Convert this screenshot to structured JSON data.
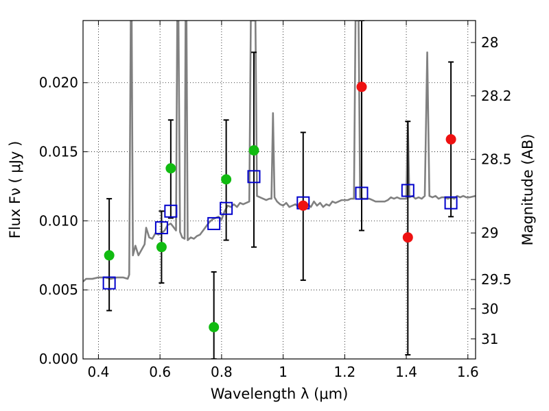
{
  "chart_data": {
    "type": "scatter",
    "xlabel": "Wavelength  λ (μm)",
    "ylabel": "Flux  Fν  ( μJy )",
    "y2label": "Magnitude (AB)",
    "xlim": [
      0.35,
      1.625
    ],
    "ylim": [
      0.0,
      0.0245
    ],
    "grid": true,
    "x_ticks": [
      0.4,
      0.6,
      0.8,
      1.0,
      1.2,
      1.4,
      1.6
    ],
    "x_tick_labels": [
      "0.4",
      "0.6",
      "0.8",
      "1",
      "1.2",
      "1.4",
      "1.6"
    ],
    "y_ticks": [
      0.0,
      0.005,
      0.01,
      0.015,
      0.02
    ],
    "y_tick_labels": [
      "0.000",
      "0.005",
      "0.010",
      "0.015",
      "0.020"
    ],
    "y2_ticks": [
      {
        "label": "28",
        "flux": 0.02291
      },
      {
        "label": "28.2",
        "flux": 0.01905
      },
      {
        "label": "28.5",
        "flux": 0.01445
      },
      {
        "label": "29",
        "flux": 0.00912
      },
      {
        "label": "29.5",
        "flux": 0.00575
      },
      {
        "label": "30",
        "flux": 0.00363
      },
      {
        "label": "31",
        "flux": 0.00145
      }
    ],
    "colors": {
      "spectrum": "#808080",
      "model_squares": "#0000cc",
      "detections": "#11bb11",
      "nondetections": "#ee1111",
      "errorbars": "#000000",
      "grid": "#000000"
    },
    "series": [
      {
        "marker": "line",
        "points": [
          [
            0.35,
            0.0056
          ],
          [
            0.36,
            0.0058
          ],
          [
            0.38,
            0.0058
          ],
          [
            0.4,
            0.0059
          ],
          [
            0.42,
            0.0059
          ],
          [
            0.44,
            0.0058
          ],
          [
            0.46,
            0.0059
          ],
          [
            0.48,
            0.0059
          ],
          [
            0.495,
            0.0058
          ],
          [
            0.5,
            0.0061
          ],
          [
            0.505,
            0.0245
          ],
          [
            0.508,
            0.0245
          ],
          [
            0.512,
            0.0075
          ],
          [
            0.52,
            0.0082
          ],
          [
            0.53,
            0.0075
          ],
          [
            0.54,
            0.0079
          ],
          [
            0.55,
            0.0083
          ],
          [
            0.555,
            0.0095
          ],
          [
            0.565,
            0.0088
          ],
          [
            0.575,
            0.0087
          ],
          [
            0.585,
            0.0091
          ],
          [
            0.595,
            0.009
          ],
          [
            0.605,
            0.0091
          ],
          [
            0.615,
            0.0093
          ],
          [
            0.625,
            0.0097
          ],
          [
            0.635,
            0.0098
          ],
          [
            0.642,
            0.0096
          ],
          [
            0.652,
            0.0093
          ],
          [
            0.656,
            0.0245
          ],
          [
            0.66,
            0.0245
          ],
          [
            0.665,
            0.0092
          ],
          [
            0.672,
            0.0088
          ],
          [
            0.68,
            0.0087
          ],
          [
            0.683,
            0.0245
          ],
          [
            0.686,
            0.0245
          ],
          [
            0.69,
            0.0086
          ],
          [
            0.7,
            0.0088
          ],
          [
            0.71,
            0.0087
          ],
          [
            0.72,
            0.0089
          ],
          [
            0.73,
            0.009
          ],
          [
            0.74,
            0.0093
          ],
          [
            0.75,
            0.0096
          ],
          [
            0.76,
            0.0099
          ],
          [
            0.77,
            0.0101
          ],
          [
            0.78,
            0.0102
          ],
          [
            0.79,
            0.0103
          ],
          [
            0.8,
            0.0101
          ],
          [
            0.81,
            0.0107
          ],
          [
            0.82,
            0.0111
          ],
          [
            0.83,
            0.011
          ],
          [
            0.84,
            0.0112
          ],
          [
            0.85,
            0.011
          ],
          [
            0.86,
            0.0113
          ],
          [
            0.87,
            0.0112
          ],
          [
            0.88,
            0.0113
          ],
          [
            0.89,
            0.0114
          ],
          [
            0.895,
            0.0245
          ],
          [
            0.9,
            0.0245
          ],
          [
            0.905,
            0.0245
          ],
          [
            0.91,
            0.0245
          ],
          [
            0.915,
            0.0118
          ],
          [
            0.925,
            0.0117
          ],
          [
            0.935,
            0.0116
          ],
          [
            0.945,
            0.0115
          ],
          [
            0.955,
            0.0116
          ],
          [
            0.962,
            0.0116
          ],
          [
            0.967,
            0.0178
          ],
          [
            0.972,
            0.0117
          ],
          [
            0.98,
            0.0114
          ],
          [
            0.99,
            0.0112
          ],
          [
            1.0,
            0.0111
          ],
          [
            1.01,
            0.0113
          ],
          [
            1.02,
            0.011
          ],
          [
            1.03,
            0.0111
          ],
          [
            1.04,
            0.0112
          ],
          [
            1.05,
            0.011
          ],
          [
            1.06,
            0.0113
          ],
          [
            1.07,
            0.0111
          ],
          [
            1.08,
            0.0112
          ],
          [
            1.09,
            0.011
          ],
          [
            1.1,
            0.0114
          ],
          [
            1.11,
            0.0111
          ],
          [
            1.12,
            0.0113
          ],
          [
            1.13,
            0.011
          ],
          [
            1.14,
            0.0112
          ],
          [
            1.15,
            0.0111
          ],
          [
            1.16,
            0.0114
          ],
          [
            1.17,
            0.0113
          ],
          [
            1.18,
            0.0114
          ],
          [
            1.19,
            0.0115
          ],
          [
            1.2,
            0.0115
          ],
          [
            1.21,
            0.0115
          ],
          [
            1.22,
            0.0116
          ],
          [
            1.23,
            0.0116
          ],
          [
            1.235,
            0.0245
          ],
          [
            1.245,
            0.0245
          ],
          [
            1.25,
            0.0117
          ],
          [
            1.26,
            0.0116
          ],
          [
            1.27,
            0.0116
          ],
          [
            1.28,
            0.0116
          ],
          [
            1.29,
            0.0115
          ],
          [
            1.3,
            0.0114
          ],
          [
            1.31,
            0.0114
          ],
          [
            1.32,
            0.0114
          ],
          [
            1.33,
            0.0114
          ],
          [
            1.34,
            0.0115
          ],
          [
            1.35,
            0.0117
          ],
          [
            1.36,
            0.0116
          ],
          [
            1.37,
            0.0117
          ],
          [
            1.38,
            0.0116
          ],
          [
            1.39,
            0.0116
          ],
          [
            1.4,
            0.0116
          ],
          [
            1.405,
            0.0172
          ],
          [
            1.41,
            0.0117
          ],
          [
            1.42,
            0.0118
          ],
          [
            1.43,
            0.0116
          ],
          [
            1.44,
            0.0117
          ],
          [
            1.45,
            0.0116
          ],
          [
            1.46,
            0.0118
          ],
          [
            1.468,
            0.0222
          ],
          [
            1.475,
            0.0118
          ],
          [
            1.485,
            0.0117
          ],
          [
            1.495,
            0.0118
          ],
          [
            1.505,
            0.0116
          ],
          [
            1.515,
            0.0117
          ],
          [
            1.525,
            0.0117
          ],
          [
            1.535,
            0.0116
          ],
          [
            1.545,
            0.0117
          ],
          [
            1.555,
            0.0116
          ],
          [
            1.565,
            0.0118
          ],
          [
            1.575,
            0.0117
          ],
          [
            1.585,
            0.0118
          ],
          [
            1.595,
            0.0117
          ],
          [
            1.605,
            0.0117
          ],
          [
            1.625,
            0.0118
          ]
        ]
      },
      {
        "marker": "square",
        "points": [
          [
            0.435,
            0.0055
          ],
          [
            0.605,
            0.0095
          ],
          [
            0.635,
            0.0107
          ],
          [
            0.775,
            0.0098
          ],
          [
            0.815,
            0.0109
          ],
          [
            0.905,
            0.0132
          ],
          [
            1.065,
            0.0113
          ],
          [
            1.255,
            0.012
          ],
          [
            1.405,
            0.0122
          ],
          [
            1.545,
            0.0113
          ]
        ]
      },
      {
        "marker": "circle",
        "points": [
          {
            "x": 0.435,
            "y": 0.0075,
            "yerr": [
              0.0035,
              0.0116
            ]
          },
          {
            "x": 0.605,
            "y": 0.0081,
            "yerr": [
              0.0055,
              0.0107
            ]
          },
          {
            "x": 0.635,
            "y": 0.0138,
            "yerr": [
              0.0102,
              0.0173
            ]
          },
          {
            "x": 0.775,
            "y": 0.0023,
            "yerr": [
              0.0,
              0.0063
            ]
          },
          {
            "x": 0.815,
            "y": 0.013,
            "yerr": [
              0.0086,
              0.0173
            ]
          },
          {
            "x": 0.905,
            "y": 0.0151,
            "yerr": [
              0.0081,
              0.0222
            ]
          }
        ]
      },
      {
        "marker": "circle",
        "points": [
          {
            "x": 1.065,
            "y": 0.0111,
            "yerr": [
              0.0057,
              0.0164
            ]
          },
          {
            "x": 1.255,
            "y": 0.0197,
            "yerr": [
              0.0093,
              0.0245
            ]
          },
          {
            "x": 1.405,
            "y": 0.0088,
            "yerr": [
              0.0003,
              0.0172
            ]
          },
          {
            "x": 1.545,
            "y": 0.0159,
            "yerr": [
              0.0103,
              0.0215
            ]
          }
        ]
      }
    ]
  }
}
